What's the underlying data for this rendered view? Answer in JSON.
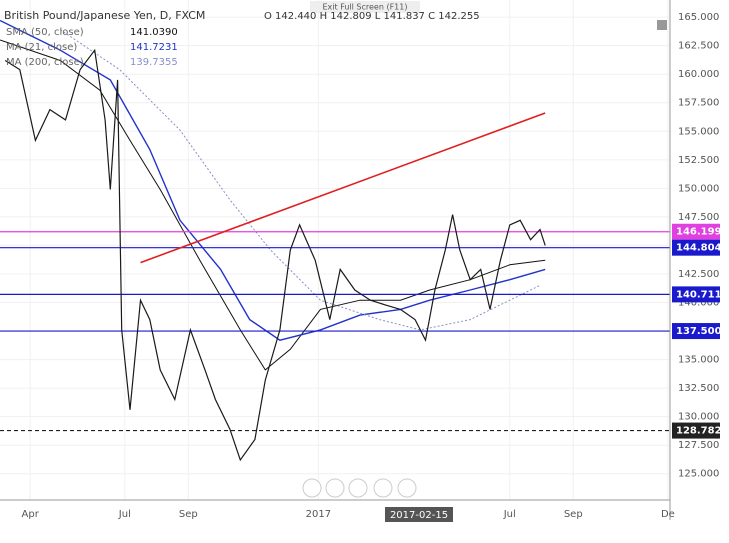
{
  "window": {
    "tooltip": "Exit Full Screen (F11)"
  },
  "chart_data": {
    "type": "line",
    "title": "British Pound/Japanese Yen, D, FXCM",
    "ohlc": "O 142.440 H 142.809 L 141.837 C 142.255",
    "color": "#1a1a1a",
    "x": [
      5,
      19,
      34,
      48,
      63,
      77,
      91,
      101,
      106,
      113,
      117,
      125,
      135,
      144,
      154,
      168,
      183,
      197,
      207,
      221,
      231,
      245,
      255,
      269,
      279,
      288,
      303,
      317,
      327,
      341,
      356,
      370,
      385,
      399,
      409,
      418,
      428,
      435,
      442,
      452,
      462,
      471,
      481,
      490,
      500,
      510,
      519,
      524
    ],
    "values": [
      161.2,
      160.4,
      154.2,
      156.9,
      156,
      160.4,
      162.1,
      156,
      149.9,
      159.5,
      137.6,
      130.6,
      140.2,
      138.5,
      134.1,
      131.5,
      137.6,
      134.1,
      131.5,
      128.9,
      126.2,
      128,
      133.2,
      137.6,
      144.6,
      146.8,
      143.7,
      138.5,
      142.9,
      141.1,
      140.2,
      139.8,
      139.4,
      138.5,
      136.7,
      141.1,
      144.6,
      147.7,
      144.6,
      142,
      142.9,
      139.4,
      143.7,
      146.8,
      147.2,
      145.5,
      146.4,
      145
    ],
    "series": [
      {
        "name": "SMA (50, close)",
        "legend_value": {
          "value": 141.039,
          "label": "141.0390"
        },
        "color": "#111111",
        "x": [
          0,
          58,
          96,
          125,
          154,
          192,
          231,
          255,
          279,
          308,
          346,
          385,
          413,
          452,
          490,
          524
        ],
        "values": [
          163,
          161.2,
          158.6,
          154.2,
          149.9,
          143.7,
          137.6,
          134.1,
          135.9,
          139.4,
          140.2,
          140.2,
          141.1,
          142,
          143.3,
          143.7
        ]
      },
      {
        "name": "MA (21, close)",
        "legend_value": {
          "value": 141.7231,
          "label": "141.7231"
        },
        "color": "#2233cc",
        "x": [
          0,
          58,
          106,
          144,
          173,
          212,
          240,
          269,
          308,
          346,
          385,
          413,
          452,
          490,
          524
        ],
        "values": [
          164.7,
          162.1,
          159.5,
          153.4,
          147.2,
          142.9,
          138.5,
          136.7,
          137.6,
          138.9,
          139.4,
          140.2,
          141.1,
          142,
          142.9
        ]
      },
      {
        "name": "MA (200, close)",
        "legend_value": {
          "value": 139.7355,
          "label": "139.7355"
        },
        "color": "#8890c8",
        "x": [
          58,
          115,
          173,
          221,
          260,
          308,
          365,
          404,
          452,
          490,
          519
        ],
        "values": [
          163.9,
          160.4,
          155.1,
          149,
          144.6,
          140.2,
          138.5,
          137.6,
          138.5,
          140.2,
          141.5
        ]
      }
    ],
    "levels": [
      {
        "value": 146.199,
        "label": "146.199",
        "color": "#e040e0"
      },
      {
        "value": 144.804,
        "label": "144.804",
        "color": "#1a1acc"
      },
      {
        "value": 140.711,
        "label": "140.711",
        "color": "#1a1acc"
      },
      {
        "value": 137.5,
        "label": "137.500",
        "color": "#1a1acc"
      },
      {
        "value": 128.782,
        "label": "128.782",
        "color": "#222222"
      }
    ],
    "trendline": {
      "x": [
        135,
        524
      ],
      "values": [
        143.5,
        156.6
      ],
      "color": "#e02020"
    },
    "cursor_label": "2017-02-15",
    "xlim": [
      0,
      644
    ],
    "ylim": [
      122.7,
      166.5
    ],
    "xticks": [
      {
        "value": 29,
        "label": "Apr"
      },
      {
        "value": 120,
        "label": "Jul"
      },
      {
        "value": 181,
        "label": "Sep"
      },
      {
        "value": 306,
        "label": "2017"
      },
      {
        "value": 490,
        "label": "Jul"
      },
      {
        "value": 551,
        "label": "Sep"
      },
      {
        "value": 642,
        "label": "De"
      }
    ],
    "yticks": [
      {
        "value": 125,
        "label": "125.000"
      },
      {
        "value": 127.5,
        "label": "127.500"
      },
      {
        "value": 130,
        "label": "130.000"
      },
      {
        "value": 132.5,
        "label": "132.500"
      },
      {
        "value": 135,
        "label": "135.000"
      },
      {
        "value": 137.5,
        "label": "137.500"
      },
      {
        "value": 140,
        "label": "140.000"
      },
      {
        "value": 142.5,
        "label": "142.500"
      },
      {
        "value": 145,
        "label": "145.000"
      },
      {
        "value": 147.5,
        "label": "147.500"
      },
      {
        "value": 150,
        "label": "150.000"
      },
      {
        "value": 152.5,
        "label": "152.500"
      },
      {
        "value": 155,
        "label": "155.000"
      },
      {
        "value": 157.5,
        "label": "157.500"
      },
      {
        "value": 160,
        "label": "160.000"
      },
      {
        "value": 162.5,
        "label": "162.500"
      },
      {
        "value": 165,
        "label": "165.000"
      }
    ],
    "grid": true
  }
}
